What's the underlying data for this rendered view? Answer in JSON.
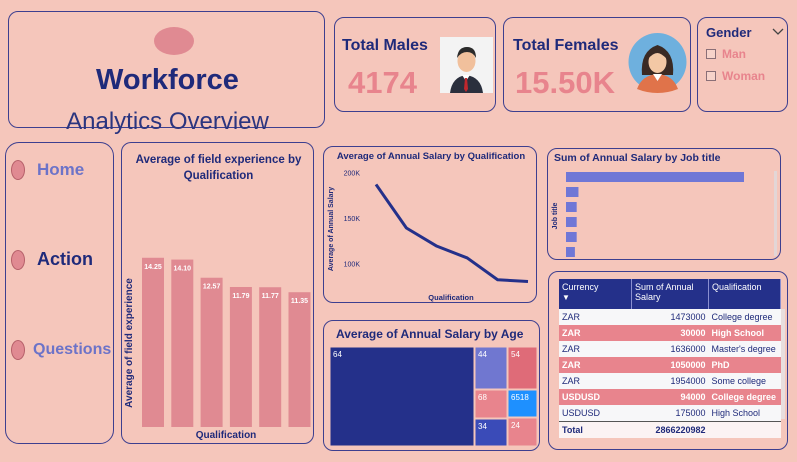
{
  "header": {
    "title": "Workforce",
    "subtitle": "Analytics Overview"
  },
  "kpis": {
    "males": {
      "label": "Total Males",
      "value": "4174"
    },
    "females": {
      "label": "Total Females",
      "value": "15.50K"
    }
  },
  "gender_slicer": {
    "title": "Gender",
    "options": [
      "Man",
      "Woman"
    ]
  },
  "nav": {
    "home": "Home",
    "action": "Action",
    "questions": "Questions"
  },
  "bar_chart": {
    "title_line1": "Average of  field experience by",
    "title_line2": "Qualification",
    "ylabel": "Average of field experience",
    "xlabel": "Qualification"
  },
  "line_chart": {
    "title": "Average of Annual Salary by Qualification",
    "ylabel": "Average of Annual Salary",
    "xlabel": "Qualification"
  },
  "job_chart": {
    "title": "Sum of Annual Salary by Job title",
    "ylabel": "Job title"
  },
  "treemap": {
    "title": "Average of Annual Salary by Age"
  },
  "table": {
    "headers": [
      "Currency",
      "Sum of Annual Salary",
      "Qualification"
    ],
    "rows": [
      {
        "currency": "ZAR",
        "salary": "1473000",
        "qualification": "College degree",
        "style": "white"
      },
      {
        "currency": "ZAR",
        "salary": "30000",
        "qualification": "High School",
        "style": "pink"
      },
      {
        "currency": "ZAR",
        "salary": "1636000",
        "qualification": "Master's degree",
        "style": "white"
      },
      {
        "currency": "ZAR",
        "salary": "1050000",
        "qualification": "PhD",
        "style": "pink"
      },
      {
        "currency": "ZAR",
        "salary": "1954000",
        "qualification": "Some college",
        "style": "white"
      },
      {
        "currency": "USDUSD",
        "salary": "94000",
        "qualification": "College degree",
        "style": "pink"
      },
      {
        "currency": "USDUSD",
        "salary": "175000",
        "qualification": "High School",
        "style": "white"
      }
    ],
    "total_label": "Total",
    "total_value": "2866220982"
  },
  "colors": {
    "background": "#f5c6bb",
    "navy": "#1f2a7a",
    "pink": "#e8848d",
    "bar": "#e08a92"
  },
  "chart_data": [
    {
      "type": "bar",
      "title": "Average of  field experience by Qualification",
      "xlabel": "Qualification",
      "ylabel": "Average of field experience",
      "categories": [
        "",
        "",
        "",
        "",
        "",
        ""
      ],
      "values": [
        14.25,
        14.1,
        12.57,
        11.79,
        11.77,
        11.35
      ],
      "data_labels": [
        "14.25",
        "14.10",
        "12.57",
        "11.79",
        "11.77",
        "11.35"
      ],
      "ylim": [
        0,
        16
      ]
    },
    {
      "type": "line",
      "title": "Average of Annual Salary by Qualification",
      "xlabel": "Qualification",
      "ylabel": "Average of Annual Salary",
      "y_ticks": [
        "100K",
        "150K",
        "200K"
      ],
      "values": [
        188000,
        140000,
        120000,
        107000,
        83000,
        81000
      ],
      "ylim": [
        75000,
        205000
      ]
    },
    {
      "type": "bar",
      "orientation": "horizontal",
      "title": "Sum of Annual Salary by Job title",
      "ylabel": "Job title",
      "values": [
        100,
        7,
        6,
        6,
        6,
        5,
        5
      ]
    },
    {
      "type": "treemap",
      "title": "Average of Annual Salary by Age",
      "labels": [
        "64",
        "44",
        "54",
        "68",
        "6518",
        "34",
        "24"
      ]
    }
  ]
}
